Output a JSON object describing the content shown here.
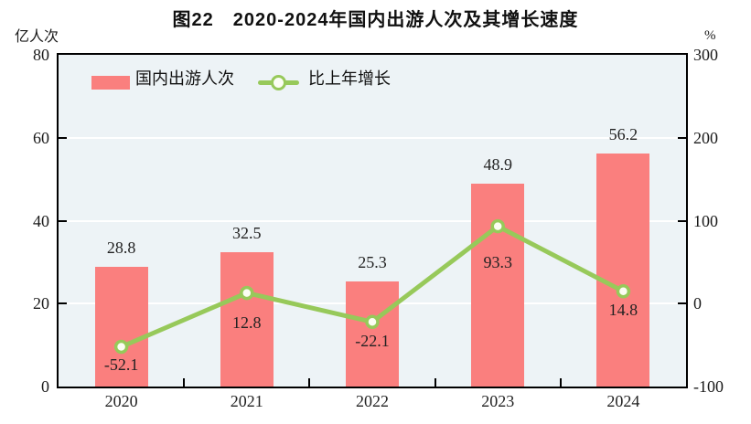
{
  "title": "图22　2020-2024年国内出游人次及其增长速度",
  "chart_data": {
    "type": "bar",
    "subtype": "bar+line combo, dual axis",
    "categories": [
      "2020",
      "2021",
      "2022",
      "2023",
      "2024"
    ],
    "series": [
      {
        "name": "国内出游人次",
        "type": "bar",
        "axis": "left",
        "color": "#fa7f7e",
        "values": [
          28.8,
          32.5,
          25.3,
          48.9,
          56.2
        ]
      },
      {
        "name": "比上年增长",
        "type": "line",
        "axis": "right",
        "color": "#97c95a",
        "marker": "open-circle",
        "marker_fill": "#fbfdf3",
        "values": [
          -52.1,
          12.8,
          -22.1,
          93.3,
          14.8
        ],
        "label_dy": [
          20,
          33,
          22,
          40,
          21
        ]
      }
    ],
    "left_axis": {
      "unit": "亿人次",
      "min": 0,
      "max": 80,
      "ticks": [
        80,
        60,
        40,
        20,
        0
      ]
    },
    "right_axis": {
      "unit": "%",
      "min": -100,
      "max": 300,
      "ticks": [
        300,
        200,
        100,
        0,
        -100
      ]
    },
    "gridlines": {
      "show": true,
      "color": "#ffffff",
      "at_left_values": [
        60,
        40,
        20
      ]
    },
    "legend": {
      "position": "top-left-inside"
    },
    "plot_bg": "#edf3f6",
    "border_color": "#000000"
  }
}
